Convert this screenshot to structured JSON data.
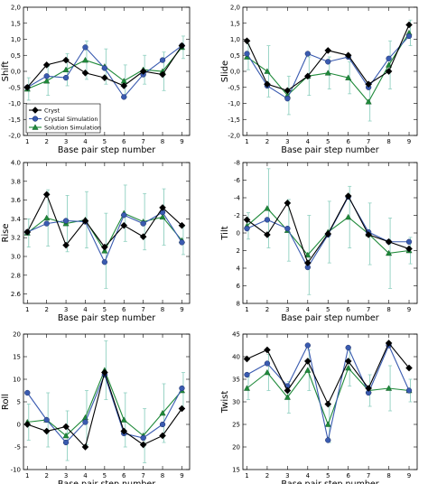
{
  "colors": {
    "cryst": "#000000",
    "crystal_sim": "#3a5bb0",
    "solution_sim": "#1f8a3a",
    "error_bar": "#8fd0c0"
  },
  "legend": {
    "entries": [
      "Cryst",
      "Crystal Simulation",
      "Solution Simulation"
    ]
  },
  "chart_data": [
    {
      "type": "line",
      "ylabel": "Shift",
      "xlabel": "Base pair step number",
      "x": [
        1,
        2,
        3,
        4,
        5,
        6,
        7,
        8,
        9
      ],
      "ylim": [
        -2.0,
        2.0
      ],
      "yticks": [
        "-2,0",
        "-1,5",
        "-1,0",
        "-0,5",
        "0,0",
        "0,5",
        "1,0",
        "1,5",
        "2,0"
      ],
      "ytick_values": [
        -2.0,
        -1.5,
        -1.0,
        -0.5,
        0.0,
        0.5,
        1.0,
        1.5,
        2.0
      ],
      "legend": "bottom-left",
      "series": [
        {
          "name": "Cryst",
          "values": [
            -0.5,
            0.2,
            0.35,
            -0.05,
            -0.2,
            -0.45,
            0.0,
            -0.1,
            0.8
          ]
        },
        {
          "name": "Crystal Simulation",
          "values": [
            -0.5,
            -0.15,
            -0.2,
            0.75,
            0.1,
            -0.8,
            -0.1,
            0.35,
            0.8
          ]
        },
        {
          "name": "Solution Simulation",
          "values": [
            -0.55,
            -0.3,
            0.05,
            0.35,
            0.15,
            -0.3,
            0.05,
            0.0,
            0.75
          ]
        }
      ],
      "error": [
        0.35,
        0.45,
        0.5,
        0.6,
        0.55,
        0.5,
        0.45,
        0.6,
        0.35
      ]
    },
    {
      "type": "line",
      "ylabel": "Slide",
      "xlabel": "Base pair step number",
      "x": [
        1,
        2,
        3,
        4,
        5,
        6,
        7,
        8,
        9
      ],
      "ylim": [
        -2.0,
        2.0
      ],
      "yticks": [
        "-2,0",
        "-1,5",
        "-1,0",
        "-0,5",
        "0,0",
        "0,5",
        "1,0",
        "1,5",
        "2,0"
      ],
      "ytick_values": [
        -2.0,
        -1.5,
        -1.0,
        -0.5,
        0.0,
        0.5,
        1.0,
        1.5,
        2.0
      ],
      "series": [
        {
          "name": "Cryst",
          "values": [
            0.95,
            -0.4,
            -0.6,
            -0.15,
            0.65,
            0.5,
            -0.4,
            0.0,
            1.45
          ]
        },
        {
          "name": "Crystal Simulation",
          "values": [
            0.55,
            -0.45,
            -0.85,
            0.55,
            0.3,
            0.45,
            -0.5,
            0.4,
            1.1
          ]
        },
        {
          "name": "Solution Simulation",
          "values": [
            0.45,
            0.0,
            -0.75,
            -0.15,
            -0.05,
            -0.2,
            -0.95,
            0.2,
            1.2
          ]
        }
      ],
      "error": [
        0.4,
        0.8,
        0.6,
        0.6,
        0.5,
        0.5,
        0.6,
        0.75,
        0.4
      ]
    },
    {
      "type": "line",
      "ylabel": "Rise",
      "xlabel": "Base pair step number",
      "x": [
        1,
        2,
        3,
        4,
        5,
        6,
        7,
        8,
        9
      ],
      "ylim": [
        2.5,
        4.0
      ],
      "yticks": [
        "2.6",
        "2.8",
        "3.0",
        "3.2",
        "3.4",
        "3.6",
        "3.8",
        "4.0"
      ],
      "ytick_values": [
        2.6,
        2.8,
        3.0,
        3.2,
        3.4,
        3.6,
        3.8,
        4.0
      ],
      "series": [
        {
          "name": "Cryst",
          "values": [
            3.26,
            3.66,
            3.12,
            3.38,
            3.1,
            3.33,
            3.21,
            3.52,
            3.33
          ]
        },
        {
          "name": "Crystal Simulation",
          "values": [
            3.26,
            3.35,
            3.38,
            3.37,
            2.94,
            3.44,
            3.35,
            3.47,
            3.15
          ]
        },
        {
          "name": "Solution Simulation",
          "values": [
            3.25,
            3.41,
            3.35,
            3.39,
            3.06,
            3.46,
            3.37,
            3.42,
            3.17
          ]
        }
      ],
      "error": [
        0.15,
        0.3,
        0.3,
        0.3,
        0.4,
        0.3,
        0.3,
        0.3,
        0.15
      ]
    },
    {
      "type": "line",
      "ylabel": "Tilt",
      "xlabel": "Base pair step number",
      "x": [
        1,
        2,
        3,
        4,
        5,
        6,
        7,
        8,
        9
      ],
      "ylim": [
        8,
        -8
      ],
      "yticks": [
        "8",
        "6",
        "4",
        "2",
        "0",
        "-2",
        "-4",
        "-6",
        "-8"
      ],
      "ytick_values": [
        8,
        6,
        4,
        2,
        0,
        -2,
        -4,
        -6,
        -8
      ],
      "series": [
        {
          "name": "Cryst",
          "values": [
            -1.5,
            0.2,
            -3.4,
            3.4,
            0.1,
            -4.2,
            0.2,
            1.0,
            1.8
          ]
        },
        {
          "name": "Crystal Simulation",
          "values": [
            -0.5,
            -1.5,
            -0.5,
            3.9,
            0.2,
            -4.1,
            -0.1,
            1.0,
            1.0
          ]
        },
        {
          "name": "Solution Simulation",
          "values": [
            -0.8,
            -2.8,
            -0.3,
            2.5,
            -0.1,
            -1.8,
            0.1,
            2.3,
            2.0
          ]
        }
      ],
      "error": [
        1.5,
        4.5,
        3.5,
        4.5,
        3.5,
        3.5,
        3.5,
        4.0,
        1.5
      ]
    },
    {
      "type": "line",
      "ylabel": "Roll",
      "xlabel": "Base pair step number",
      "x": [
        1,
        2,
        3,
        4,
        5,
        6,
        7,
        8,
        9
      ],
      "ylim": [
        -10,
        20
      ],
      "yticks": [
        "-10",
        "-5",
        "0",
        "5",
        "10",
        "15",
        "20"
      ],
      "ytick_values": [
        -10,
        -5,
        0,
        5,
        10,
        15,
        20
      ],
      "series": [
        {
          "name": "Cryst",
          "values": [
            0.0,
            -1.5,
            -0.5,
            -5.0,
            11.5,
            -1.5,
            -4.5,
            -2.5,
            3.5
          ]
        },
        {
          "name": "Crystal Simulation",
          "values": [
            7.0,
            1.0,
            -4.0,
            0.5,
            11.0,
            -2.0,
            -3.0,
            0.0,
            8.0
          ]
        },
        {
          "name": "Solution Simulation",
          "values": [
            0.5,
            1.0,
            -2.5,
            1.5,
            12.0,
            1.0,
            -2.5,
            2.5,
            7.5
          ]
        }
      ],
      "error": [
        4.0,
        6.0,
        5.5,
        6.0,
        6.5,
        6.0,
        6.0,
        6.5,
        4.0
      ]
    },
    {
      "type": "line",
      "ylabel": "Twist",
      "xlabel": "Base pair step number",
      "x": [
        1,
        2,
        3,
        4,
        5,
        6,
        7,
        8,
        9
      ],
      "ylim": [
        15,
        45
      ],
      "yticks": [
        "15",
        "20",
        "25",
        "30",
        "35",
        "40",
        "45"
      ],
      "ytick_values": [
        15,
        20,
        25,
        30,
        35,
        40,
        45
      ],
      "series": [
        {
          "name": "Cryst",
          "values": [
            39.5,
            41.5,
            32.5,
            39.0,
            29.5,
            39.0,
            33.0,
            43.0,
            37.5
          ]
        },
        {
          "name": "Crystal Simulation",
          "values": [
            36.0,
            38.5,
            33.5,
            42.5,
            21.5,
            42.0,
            32.0,
            42.5,
            32.5
          ]
        },
        {
          "name": "Solution Simulation",
          "values": [
            33.0,
            36.5,
            31.0,
            37.0,
            25.0,
            37.5,
            32.5,
            33.0,
            32.5
          ]
        }
      ],
      "error": [
        2.5,
        4.0,
        3.5,
        4.5,
        4.0,
        4.0,
        3.5,
        5.0,
        2.5
      ]
    }
  ]
}
